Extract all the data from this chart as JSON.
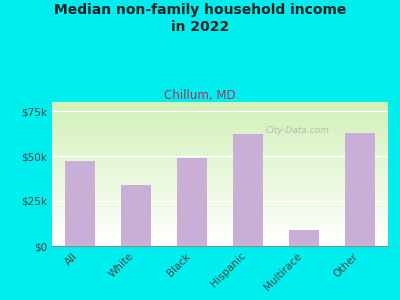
{
  "title": "Median non-family household income\nin 2022",
  "subtitle": "Chillum, MD",
  "categories": [
    "All",
    "White",
    "Black",
    "Hispanic",
    "Multirace",
    "Other"
  ],
  "values": [
    47000,
    34000,
    49000,
    62000,
    9000,
    63000
  ],
  "bar_color": "#c9aed6",
  "background_color": "#00eeee",
  "title_color": "#222222",
  "subtitle_color": "#b03060",
  "ytick_labels": [
    "$0",
    "$25k",
    "$50k",
    "$75k"
  ],
  "ytick_values": [
    0,
    25000,
    50000,
    75000
  ],
  "ylim": [
    0,
    80000
  ],
  "watermark": "City-Data.com"
}
